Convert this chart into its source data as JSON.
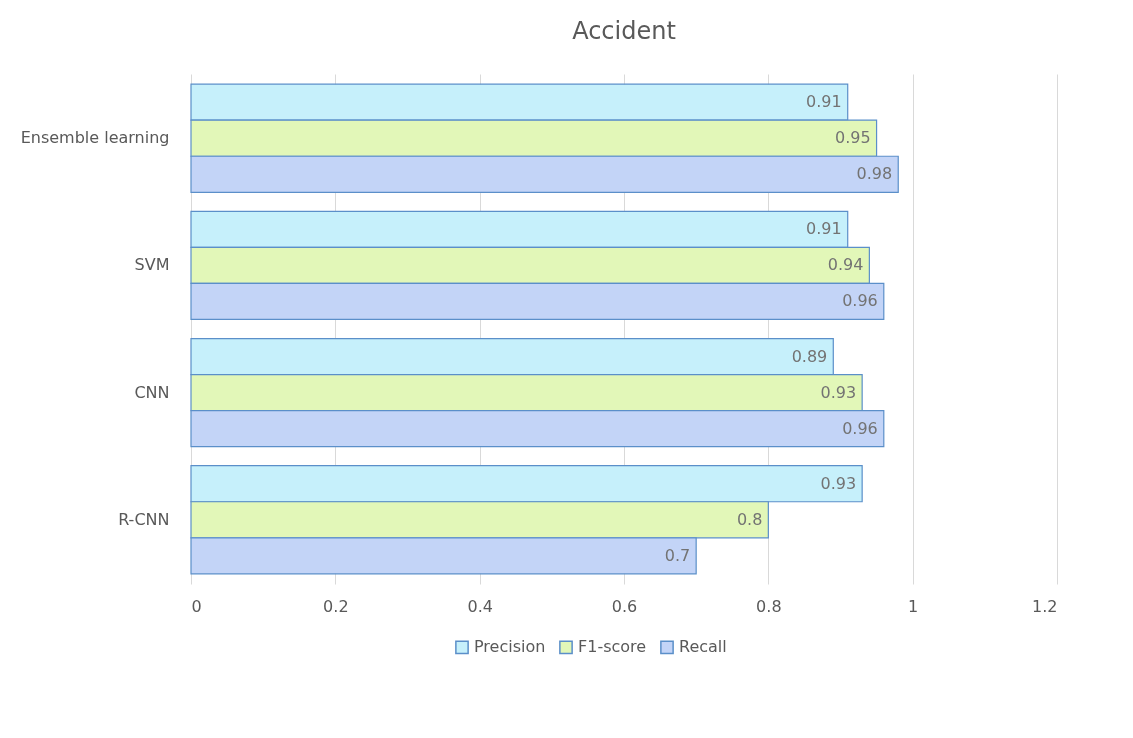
{
  "chart_data": {
    "type": "bar",
    "orientation": "horizontal",
    "title": "Accident",
    "categories": [
      "Ensemble learning",
      "SVM",
      "CNN",
      "R-CNN"
    ],
    "series": [
      {
        "name": "Precision",
        "color": "#c6f0fb",
        "values": [
          0.91,
          0.91,
          0.89,
          0.93
        ]
      },
      {
        "name": "F1-score",
        "color": "#e2f7b8",
        "values": [
          0.95,
          0.94,
          0.93,
          0.8
        ]
      },
      {
        "name": "Recall",
        "color": "#c3d4f7",
        "values": [
          0.98,
          0.96,
          0.96,
          0.7
        ]
      }
    ],
    "xlim": [
      0,
      1.2
    ],
    "xticks": [
      0,
      0.2,
      0.4,
      0.6,
      0.8,
      1,
      1.2
    ],
    "grid": "x",
    "legend": "bottom",
    "data_labels": true
  }
}
